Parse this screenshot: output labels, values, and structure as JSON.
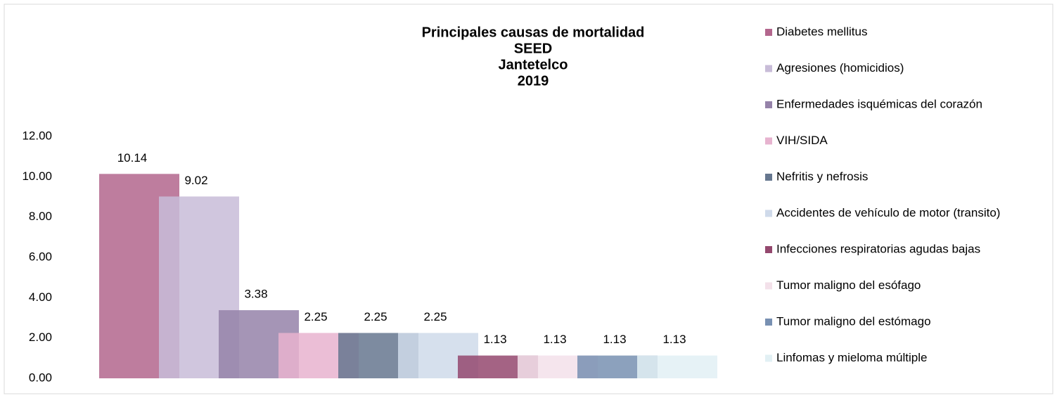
{
  "chart_data": {
    "type": "bar",
    "title": [
      "Principales causas de mortalidad",
      "SEED",
      "Jantetelco",
      "2019"
    ],
    "series": [
      {
        "name": "Diabetes mellitus",
        "color": "#b3668d",
        "values": [
          10.14
        ]
      },
      {
        "name": "Agresiones (homicidios)",
        "color": "#c8bcd8",
        "values": [
          9.02
        ]
      },
      {
        "name": "Enfermedades isquémicas del corazón",
        "color": "#9582a9",
        "values": [
          3.38
        ]
      },
      {
        "name": "VIH/SIDA",
        "color": "#e7b3cf",
        "values": [
          2.25
        ]
      },
      {
        "name": "Nefritis y nefrosis",
        "color": "#66778f",
        "values": [
          2.25
        ]
      },
      {
        "name": "Accidentes de vehículo de motor (transito)",
        "color": "#cfdaea",
        "values": [
          2.25
        ]
      },
      {
        "name": "Infecciones respiratorias agudas bajas",
        "color": "#94486e",
        "values": [
          1.13
        ]
      },
      {
        "name": "Tumor maligno del esófago",
        "color": "#f3e1ea",
        "values": [
          1.13
        ]
      },
      {
        "name": "Tumor maligno del estómago",
        "color": "#7890b2",
        "values": [
          1.13
        ]
      },
      {
        "name": "Linfomas y mieloma múltiple",
        "color": "#e2f0f4",
        "values": [
          1.13
        ]
      }
    ],
    "ylim": [
      0,
      12
    ],
    "yticks": [
      {
        "value": 0,
        "label": "0.00"
      },
      {
        "value": 2,
        "label": "2.00"
      },
      {
        "value": 4,
        "label": "4.00"
      },
      {
        "value": 6,
        "label": "6.00"
      },
      {
        "value": 8,
        "label": "8.00"
      },
      {
        "value": 10,
        "label": "10.00"
      },
      {
        "value": 12,
        "label": "12.00"
      }
    ],
    "grid": false,
    "legend": "right"
  }
}
